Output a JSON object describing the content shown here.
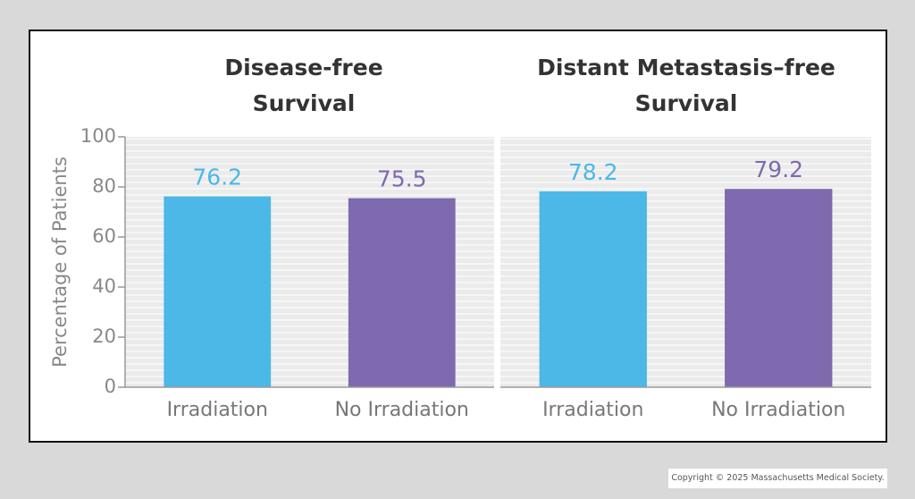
{
  "chart_data": [
    {
      "type": "bar",
      "title": "Disease-free Survival",
      "y_label": "Percentage of Patients",
      "categories": [
        "Irradiation",
        "No Irradiation"
      ],
      "values": [
        76.2,
        75.5
      ],
      "colors": [
        "#4bb8e8",
        "#7e6aae"
      ],
      "ylim": [
        0,
        100
      ],
      "yticks": [
        0,
        20,
        40,
        60,
        80,
        100
      ]
    },
    {
      "type": "bar",
      "title": "Distant Metastasis–free Survival",
      "categories": [
        "Irradiation",
        "No Irradiation"
      ],
      "values": [
        78.2,
        79.2
      ],
      "colors": [
        "#4bb8e8",
        "#7e6aae"
      ],
      "ylim": [
        0,
        100
      ]
    }
  ],
  "copyright": "Copyright © 2025 Massachusetts Medical Society."
}
